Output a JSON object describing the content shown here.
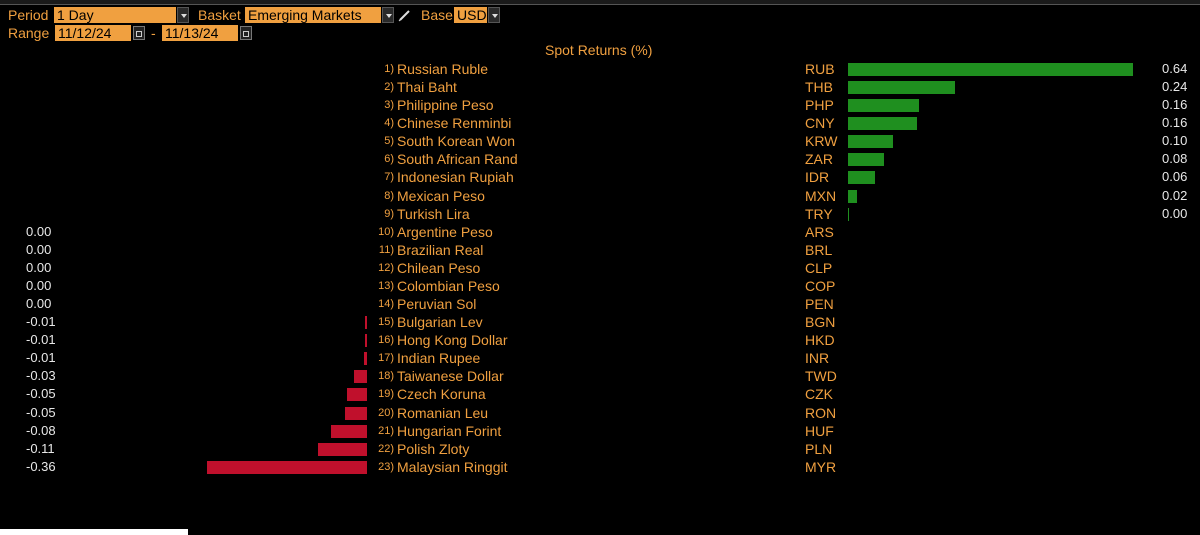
{
  "controls": {
    "period_label": "Period",
    "period_value": "1 Day",
    "basket_label": "Basket",
    "basket_value": "Emerging Markets",
    "base_label": "Base",
    "base_value": "USD",
    "range_label": "Range",
    "range_start": "11/12/24",
    "range_sep": "-",
    "range_end": "11/13/24"
  },
  "colors": {
    "positive": "#1f8f1f",
    "negative": "#c0102c",
    "accent": "#f0a040"
  },
  "chart_data": {
    "type": "bar",
    "title": "Spot Returns (%)",
    "rows": [
      {
        "rank": "1)",
        "name": "Russian Ruble",
        "code": "RUB",
        "value": 0.64,
        "label": "0.64"
      },
      {
        "rank": "2)",
        "name": "Thai Baht",
        "code": "THB",
        "value": 0.24,
        "label": "0.24"
      },
      {
        "rank": "3)",
        "name": "Philippine Peso",
        "code": "PHP",
        "value": 0.16,
        "label": "0.16"
      },
      {
        "rank": "4)",
        "name": "Chinese Renminbi",
        "code": "CNY",
        "value": 0.155,
        "label": "0.16"
      },
      {
        "rank": "5)",
        "name": "South Korean Won",
        "code": "KRW",
        "value": 0.1,
        "label": "0.10"
      },
      {
        "rank": "6)",
        "name": "South African Rand",
        "code": "ZAR",
        "value": 0.08,
        "label": "0.08"
      },
      {
        "rank": "7)",
        "name": "Indonesian Rupiah",
        "code": "IDR",
        "value": 0.06,
        "label": "0.06"
      },
      {
        "rank": "8)",
        "name": "Mexican Peso",
        "code": "MXN",
        "value": 0.02,
        "label": "0.02"
      },
      {
        "rank": "9)",
        "name": "Turkish Lira",
        "code": "TRY",
        "value": 0.003,
        "label": "0.00"
      },
      {
        "rank": "10)",
        "name": "Argentine Peso",
        "code": "ARS",
        "value": 0.0,
        "label": "0.00"
      },
      {
        "rank": "11)",
        "name": "Brazilian Real",
        "code": "BRL",
        "value": 0.0,
        "label": "0.00"
      },
      {
        "rank": "12)",
        "name": "Chilean Peso",
        "code": "CLP",
        "value": 0.0,
        "label": "0.00"
      },
      {
        "rank": "13)",
        "name": "Colombian Peso",
        "code": "COP",
        "value": 0.0,
        "label": "0.00"
      },
      {
        "rank": "14)",
        "name": "Peruvian Sol",
        "code": "PEN",
        "value": 0.0,
        "label": "0.00"
      },
      {
        "rank": "15)",
        "name": "Bulgarian Lev",
        "code": "BGN",
        "value": -0.005,
        "label": "-0.01"
      },
      {
        "rank": "16)",
        "name": "Hong Kong Dollar",
        "code": "HKD",
        "value": -0.005,
        "label": "-0.01"
      },
      {
        "rank": "17)",
        "name": "Indian Rupee",
        "code": "INR",
        "value": -0.007,
        "label": "-0.01"
      },
      {
        "rank": "18)",
        "name": "Taiwanese Dollar",
        "code": "TWD",
        "value": -0.03,
        "label": "-0.03"
      },
      {
        "rank": "19)",
        "name": "Czech Koruna",
        "code": "CZK",
        "value": -0.045,
        "label": "-0.05"
      },
      {
        "rank": "20)",
        "name": "Romanian Leu",
        "code": "RON",
        "value": -0.05,
        "label": "-0.05"
      },
      {
        "rank": "21)",
        "name": "Hungarian Forint",
        "code": "HUF",
        "value": -0.08,
        "label": "-0.08"
      },
      {
        "rank": "22)",
        "name": "Polish Zloty",
        "code": "PLN",
        "value": -0.11,
        "label": "-0.11"
      },
      {
        "rank": "23)",
        "name": "Malaysian Ringgit",
        "code": "MYR",
        "value": -0.36,
        "label": "-0.36"
      }
    ]
  }
}
